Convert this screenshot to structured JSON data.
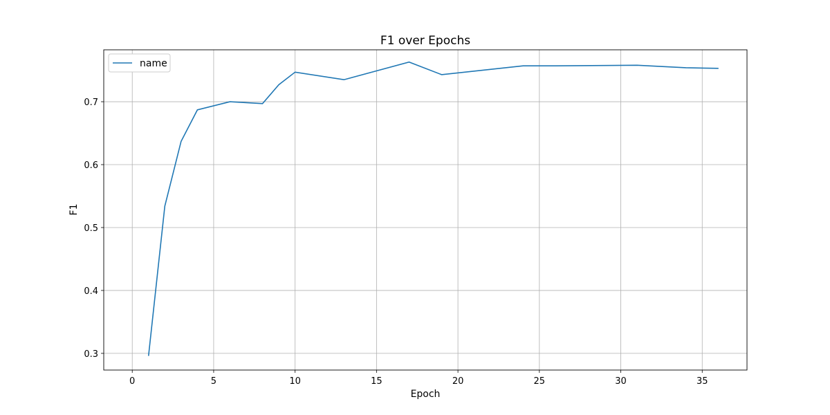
{
  "chart_data": {
    "type": "line",
    "title": "F1 over Epochs",
    "xlabel": "Epoch",
    "ylabel": "F1",
    "xlim": [
      -1.75,
      37.75
    ],
    "ylim": [
      0.2735,
      0.7825
    ],
    "xticks": [
      0,
      5,
      10,
      15,
      20,
      25,
      30,
      35
    ],
    "yticks": [
      0.3,
      0.4,
      0.5,
      0.6,
      0.7
    ],
    "ytick_labels": [
      "0.3",
      "0.4",
      "0.5",
      "0.6",
      "0.7"
    ],
    "grid": true,
    "legend_position": "top-left",
    "line_color": "#1f77b4",
    "series": [
      {
        "name": "name",
        "x": [
          1,
          2,
          3,
          4,
          6,
          8,
          9,
          10,
          13,
          17,
          19,
          24,
          26,
          31,
          34,
          36
        ],
        "y": [
          0.296,
          0.534,
          0.637,
          0.687,
          0.7,
          0.697,
          0.727,
          0.747,
          0.735,
          0.763,
          0.743,
          0.757,
          0.757,
          0.758,
          0.754,
          0.753
        ]
      }
    ]
  }
}
